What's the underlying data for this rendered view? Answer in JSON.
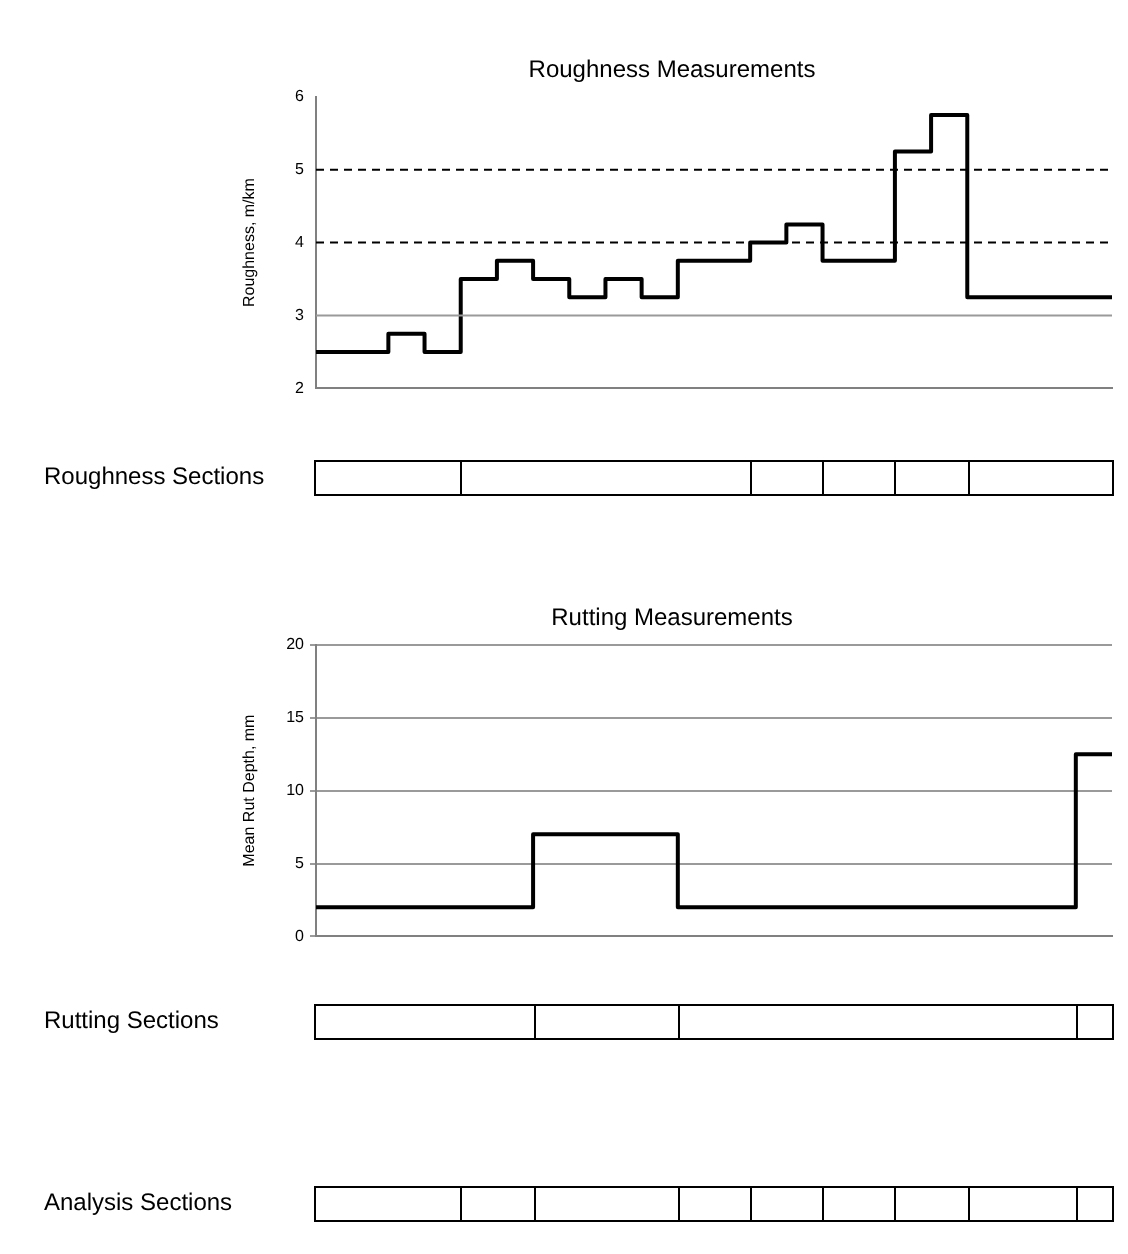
{
  "chart_data": [
    {
      "type": "step",
      "title": "Roughness Measurements",
      "ylabel": "Roughness, m/km",
      "categories": [
        null,
        null,
        null,
        null,
        null,
        null,
        null,
        null,
        null,
        null,
        null,
        null,
        null,
        null,
        null,
        null,
        null,
        null,
        null,
        null,
        null,
        null,
        null
      ],
      "values": [
        2.5,
        2.5,
        2.75,
        2.5,
        3.5,
        3.75,
        3.5,
        3.25,
        3.5,
        3.25,
        3.75,
        3.75,
        4.0,
        4.25,
        3.75,
        3.75,
        5.25,
        5.75,
        3.25,
        3.25,
        3.25,
        3.25,
        3.25
      ],
      "color": "#000000",
      "ylim": [
        2,
        6
      ],
      "yticks": [
        2,
        3,
        4,
        5,
        6
      ],
      "tick_labels": "y",
      "ref_lines": [
        {
          "axis": "y",
          "value": 3,
          "color": "#9a9a9a",
          "line_style": "solid"
        },
        {
          "axis": "y",
          "value": 4,
          "color": "#000000",
          "line_style": "dashed"
        },
        {
          "axis": "y",
          "value": 5,
          "color": "#000000",
          "line_style": "dashed"
        }
      ]
    },
    {
      "type": "other",
      "title": "Roughness Sections"
    },
    {
      "type": "step",
      "title": "Rutting Measurements",
      "ylabel": "Mean Rut Depth, mm",
      "categories": [
        null,
        null,
        null,
        null,
        null,
        null,
        null,
        null,
        null,
        null,
        null,
        null,
        null,
        null,
        null,
        null,
        null,
        null,
        null,
        null,
        null,
        null,
        null
      ],
      "values": [
        2,
        2,
        2,
        2,
        2,
        2,
        7,
        7,
        7,
        7,
        2,
        2,
        2,
        2,
        2,
        2,
        2,
        2,
        2,
        2,
        2,
        12.5,
        12.5
      ],
      "color": "#000000",
      "ylim": [
        0,
        20
      ],
      "yticks": [
        0,
        5,
        10,
        15,
        20
      ],
      "grid": "y",
      "tick_labels": "y"
    },
    {
      "type": "other",
      "title": "Rutting Sections"
    },
    {
      "type": "other",
      "title": "Analysis Sections"
    }
  ]
}
